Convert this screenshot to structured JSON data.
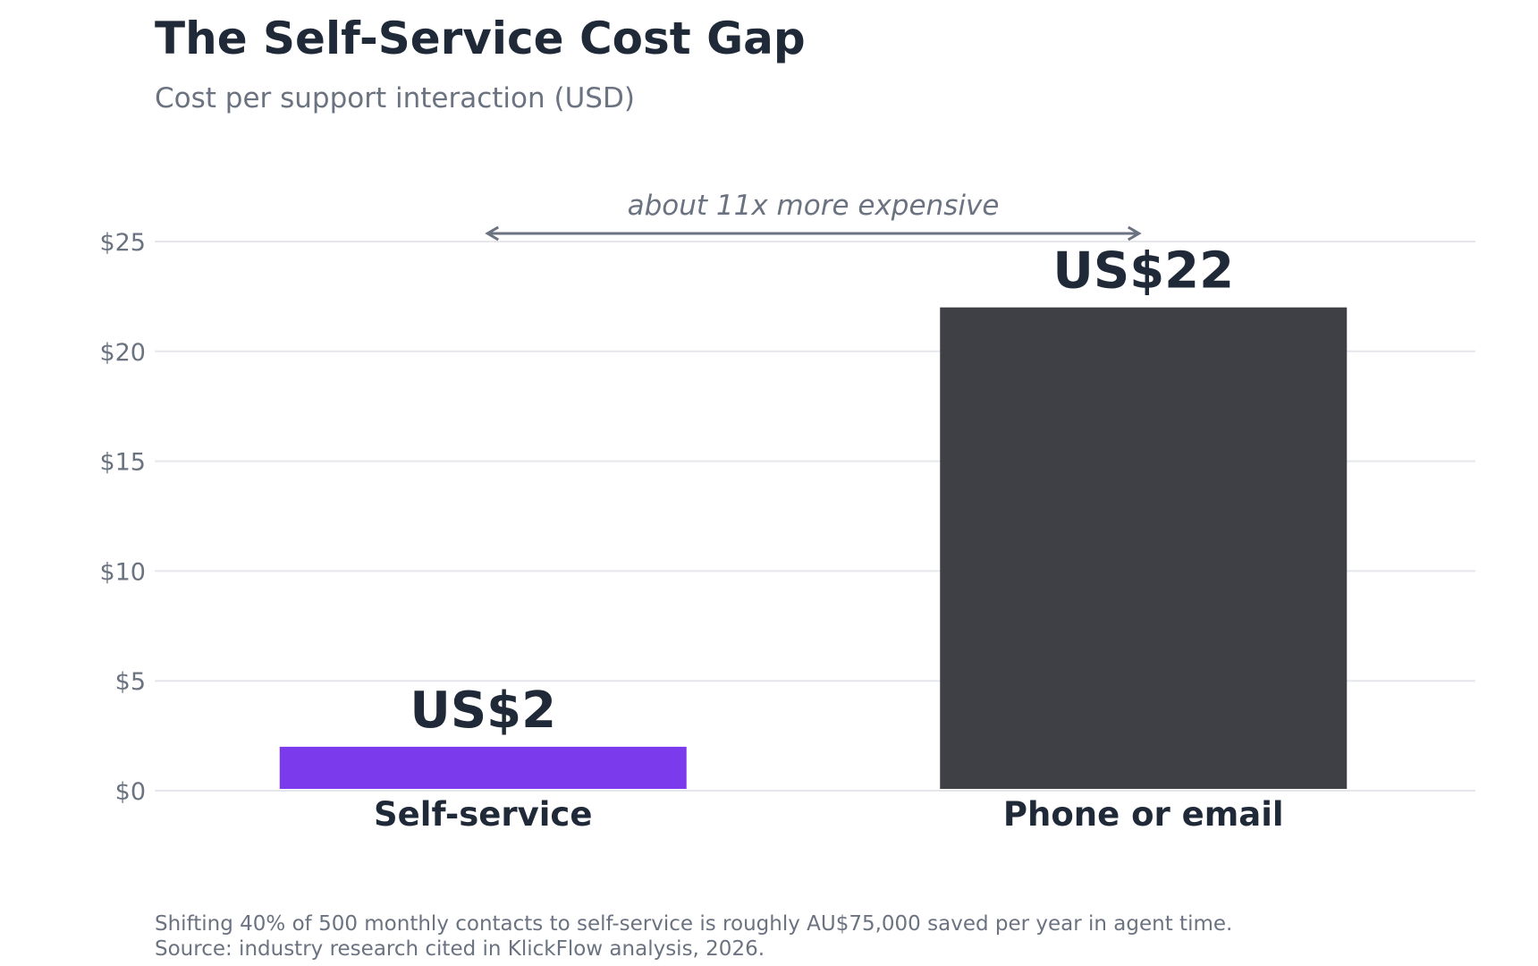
{
  "header": {
    "title": "The Self-Service Cost Gap",
    "subtitle": "Cost per support interaction (USD)"
  },
  "chart_data": {
    "type": "bar",
    "categories": [
      "Self-service",
      "Phone or email"
    ],
    "values": [
      2,
      22
    ],
    "data_labels": [
      "US$2",
      "US$22"
    ],
    "colors": [
      "#7c3aed",
      "#3f4045"
    ],
    "ylim": [
      0,
      25
    ],
    "yticks": [
      0,
      5,
      10,
      15,
      20,
      25
    ],
    "ytick_labels": [
      "$0",
      "$5",
      "$10",
      "$15",
      "$20",
      "$25"
    ],
    "grid": true,
    "annotation": "about 11x more expensive"
  },
  "footer": {
    "note": "Shifting 40% of 500 monthly contacts to self-service is roughly AU$75,000 saved per year in agent time.",
    "source": "Source: industry research cited in KlickFlow analysis, 2026."
  }
}
